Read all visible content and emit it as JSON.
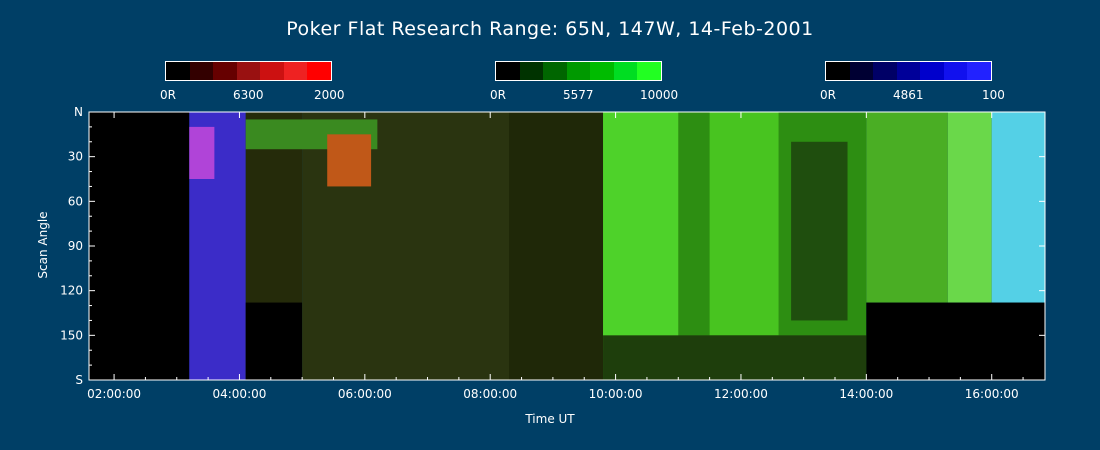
{
  "chart_data": {
    "type": "heatmap",
    "title": "Poker Flat Research Range: 65N, 147W, 14-Feb-2001",
    "xlabel": "Time UT",
    "ylabel": "Scan Angle",
    "x_ticks": [
      "02:00:00",
      "04:00:00",
      "06:00:00",
      "08:00:00",
      "10:00:00",
      "12:00:00",
      "14:00:00",
      "16:00:00"
    ],
    "x_range_hours": [
      1.6,
      16.85
    ],
    "y_ticks": [
      "N",
      "30",
      "60",
      "90",
      "120",
      "150",
      "S"
    ],
    "y_tick_values": [
      0,
      30,
      60,
      90,
      120,
      150,
      180
    ],
    "colorbars": [
      {
        "channel": "6300",
        "min_label": "0R",
        "mid_label": "6300",
        "max_label": "2000",
        "colors": [
          "#000000",
          "#330000",
          "#660000",
          "#991111",
          "#cc1111",
          "#ee2222",
          "#ff0000"
        ]
      },
      {
        "channel": "5577",
        "min_label": "0R",
        "mid_label": "5577",
        "max_label": "10000",
        "colors": [
          "#000000",
          "#003300",
          "#006600",
          "#009900",
          "#00bb00",
          "#00dd22",
          "#22ff22"
        ]
      },
      {
        "channel": "4861",
        "min_label": "0R",
        "mid_label": "4861",
        "max_label": "100",
        "colors": [
          "#000000",
          "#000033",
          "#000066",
          "#000099",
          "#0000cc",
          "#1111ee",
          "#2222ff"
        ]
      }
    ],
    "regions": [
      {
        "t0": 1.6,
        "t1": 3.2,
        "a0": 0,
        "a1": 180,
        "color": "#000000"
      },
      {
        "t0": 3.2,
        "t1": 4.1,
        "a0": 0,
        "a1": 180,
        "color": "#3b2cc8"
      },
      {
        "t0": 3.2,
        "t1": 3.6,
        "a0": 10,
        "a1": 45,
        "color": "#b044d8"
      },
      {
        "t0": 4.1,
        "t1": 5.0,
        "a0": 0,
        "a1": 180,
        "color": "#252b0a"
      },
      {
        "t0": 4.1,
        "t1": 5.0,
        "a0": 128,
        "a1": 180,
        "color": "#000000"
      },
      {
        "t0": 5.0,
        "t1": 9.8,
        "a0": 0,
        "a1": 180,
        "color": "#2a3410"
      },
      {
        "t0": 4.1,
        "t1": 6.2,
        "a0": 5,
        "a1": 25,
        "color": "#3a8a20"
      },
      {
        "t0": 5.4,
        "t1": 6.1,
        "a0": 15,
        "a1": 50,
        "color": "#c05818"
      },
      {
        "t0": 8.3,
        "t1": 9.8,
        "a0": 0,
        "a1": 180,
        "color": "#1f2808"
      },
      {
        "t0": 9.8,
        "t1": 14.0,
        "a0": 0,
        "a1": 180,
        "color": "#2d8e12"
      },
      {
        "t0": 9.8,
        "t1": 11.0,
        "a0": 0,
        "a1": 160,
        "color": "#4ed22a"
      },
      {
        "t0": 11.5,
        "t1": 12.6,
        "a0": 0,
        "a1": 150,
        "color": "#48c420"
      },
      {
        "t0": 12.8,
        "t1": 13.7,
        "a0": 20,
        "a1": 140,
        "color": "#1f4e0e"
      },
      {
        "t0": 9.8,
        "t1": 14.0,
        "a0": 150,
        "a1": 180,
        "color": "#1e3e0c"
      },
      {
        "t0": 14.0,
        "t1": 15.3,
        "a0": 0,
        "a1": 128,
        "color": "#4aae24"
      },
      {
        "t0": 15.3,
        "t1": 16.0,
        "a0": 0,
        "a1": 128,
        "color": "#6ad84a"
      },
      {
        "t0": 16.0,
        "t1": 16.85,
        "a0": 0,
        "a1": 128,
        "color": "#54d0e6"
      },
      {
        "t0": 14.0,
        "t1": 16.85,
        "a0": 128,
        "a1": 180,
        "color": "#000000"
      }
    ]
  }
}
